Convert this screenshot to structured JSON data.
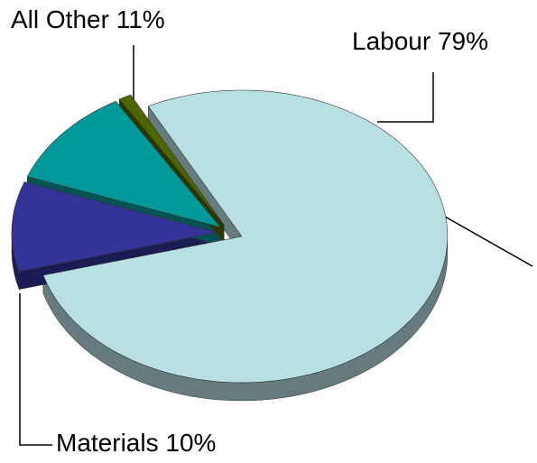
{
  "chart_data": {
    "type": "pie",
    "categories": [
      "Labour",
      "Materials",
      "All Other",
      null
    ],
    "values": [
      79,
      10,
      11,
      1
    ],
    "value_labels": [
      "79%",
      "10%",
      "11%",
      null
    ],
    "colors": [
      "#b8e0e4",
      "#333399",
      "#009999",
      "#4d6600"
    ]
  }
}
